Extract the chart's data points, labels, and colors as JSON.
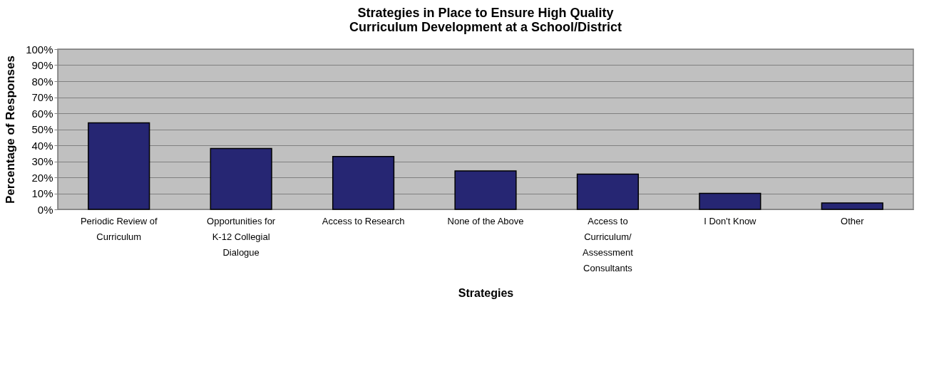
{
  "chart_data": {
    "type": "bar",
    "title": [
      "Strategies in Place to Ensure High Quality",
      "Curriculum Development at a School/District"
    ],
    "xlabel": "Strategies",
    "ylabel": "Percentage of Responses",
    "categories": [
      "Periodic Review of Curriculum",
      "Opportunities for K-12 Collegial Dialogue",
      "Access to Research",
      "None of the Above",
      "Access to Curriculum/ Assessment Consultants",
      "I Don't Know",
      "Other"
    ],
    "values": [
      54,
      38,
      33,
      24,
      22,
      10,
      4
    ],
    "color": "#262673",
    "ylim": [
      0,
      100
    ],
    "yticks": [
      {
        "value": 0,
        "label": "0%"
      },
      {
        "value": 10,
        "label": "10%"
      },
      {
        "value": 20,
        "label": "20%"
      },
      {
        "value": 30,
        "label": "30%"
      },
      {
        "value": 40,
        "label": "40%"
      },
      {
        "value": 50,
        "label": "50%"
      },
      {
        "value": 60,
        "label": "60%"
      },
      {
        "value": 70,
        "label": "70%"
      },
      {
        "value": 80,
        "label": "80%"
      },
      {
        "value": 90,
        "label": "90%"
      },
      {
        "value": 100,
        "label": "100%"
      }
    ],
    "grid": "y"
  }
}
